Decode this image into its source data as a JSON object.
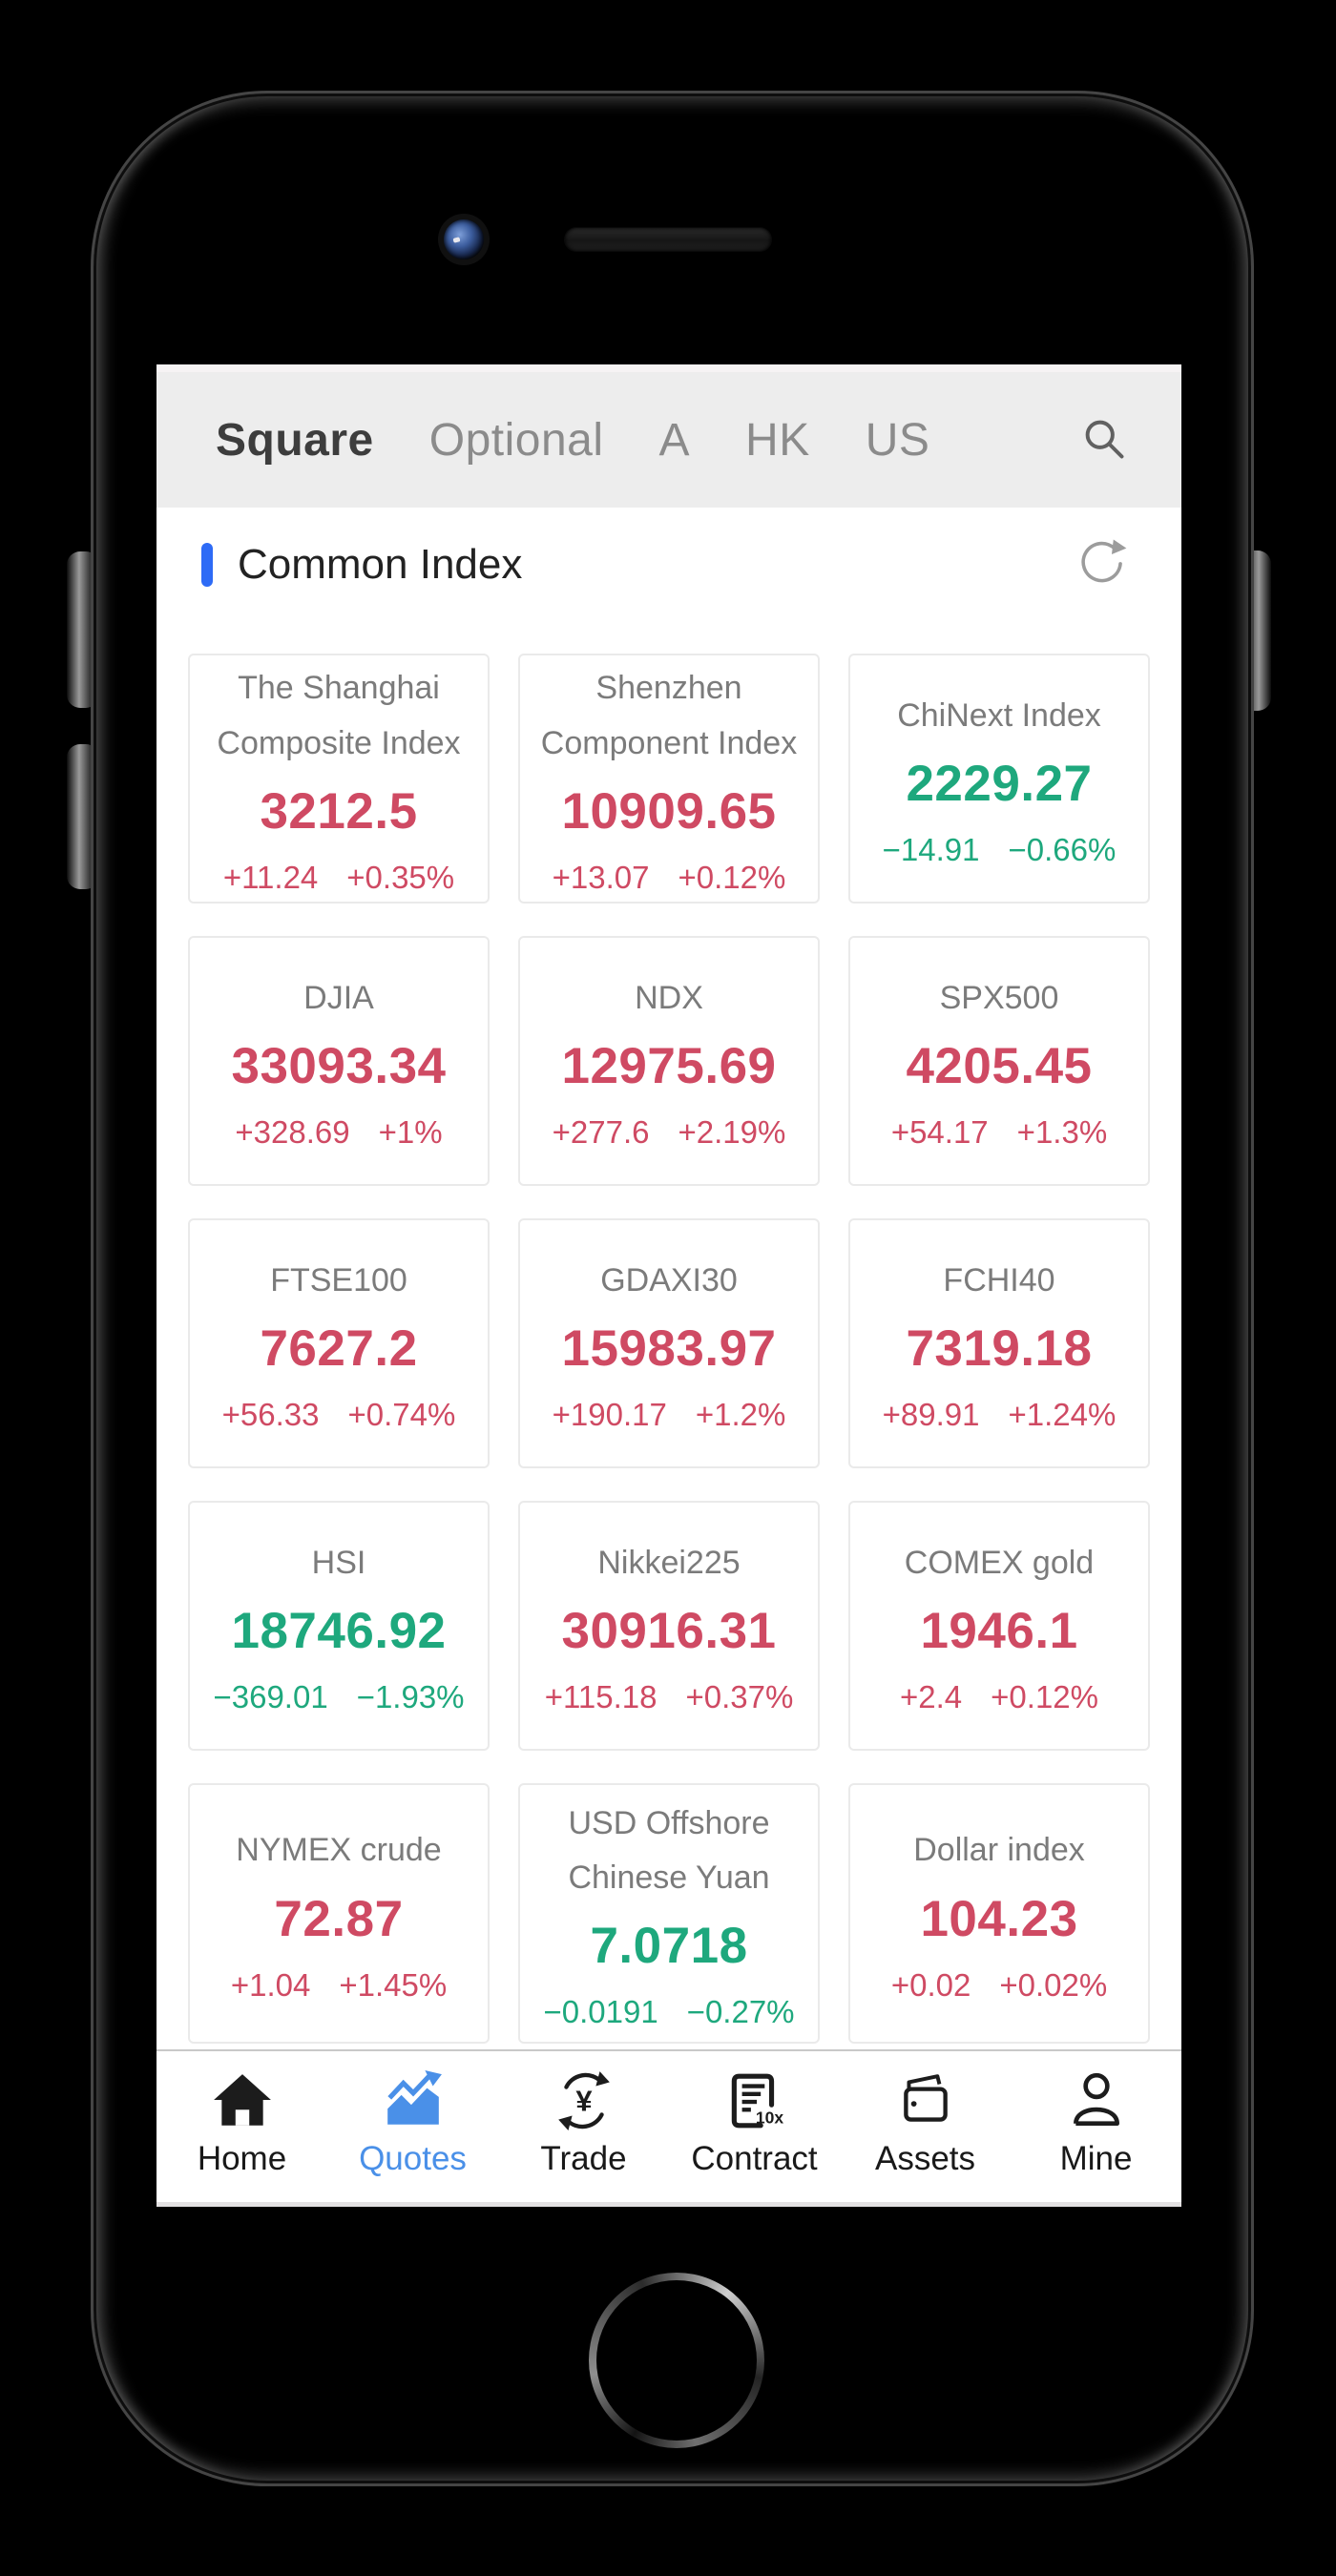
{
  "colors": {
    "up_red": "#cf4a63",
    "down_green": "#1ea87d",
    "section_accent_blue": "#2e6bf6",
    "active_tab_blue": "#4a90e8",
    "nav_bg": "#ededed"
  },
  "top_nav": {
    "tabs": [
      {
        "label": "Square",
        "active": true
      },
      {
        "label": "Optional",
        "active": false
      },
      {
        "label": "A",
        "active": false
      },
      {
        "label": "HK",
        "active": false
      },
      {
        "label": "US",
        "active": false
      }
    ],
    "search_icon": "magnifier-icon"
  },
  "section_header": {
    "title": "Common Index",
    "refresh_icon": "refresh-icon"
  },
  "indices": [
    {
      "name": "The Shanghai Composite Index",
      "price": "3212.5",
      "change": "+11.24",
      "change_pct": "+0.35%",
      "direction": "up"
    },
    {
      "name": "Shenzhen Component Index",
      "price": "10909.65",
      "change": "+13.07",
      "change_pct": "+0.12%",
      "direction": "up"
    },
    {
      "name": "ChiNext Index",
      "price": "2229.27",
      "change": "−14.91",
      "change_pct": "−0.66%",
      "direction": "down"
    },
    {
      "name": "DJIA",
      "price": "33093.34",
      "change": "+328.69",
      "change_pct": "+1%",
      "direction": "up"
    },
    {
      "name": "NDX",
      "price": "12975.69",
      "change": "+277.6",
      "change_pct": "+2.19%",
      "direction": "up"
    },
    {
      "name": "SPX500",
      "price": "4205.45",
      "change": "+54.17",
      "change_pct": "+1.3%",
      "direction": "up"
    },
    {
      "name": "FTSE100",
      "price": "7627.2",
      "change": "+56.33",
      "change_pct": "+0.74%",
      "direction": "up"
    },
    {
      "name": "GDAXI30",
      "price": "15983.97",
      "change": "+190.17",
      "change_pct": "+1.2%",
      "direction": "up"
    },
    {
      "name": "FCHI40",
      "price": "7319.18",
      "change": "+89.91",
      "change_pct": "+1.24%",
      "direction": "up"
    },
    {
      "name": "HSI",
      "price": "18746.92",
      "change": "−369.01",
      "change_pct": "−1.93%",
      "direction": "down"
    },
    {
      "name": "Nikkei225",
      "price": "30916.31",
      "change": "+115.18",
      "change_pct": "+0.37%",
      "direction": "up"
    },
    {
      "name": "COMEX gold",
      "price": "1946.1",
      "change": "+2.4",
      "change_pct": "+0.12%",
      "direction": "up"
    },
    {
      "name": "NYMEX crude",
      "price": "72.87",
      "change": "+1.04",
      "change_pct": "+1.45%",
      "direction": "up"
    },
    {
      "name": "USD Offshore Chinese Yuan",
      "price": "7.0718",
      "change": "−0.0191",
      "change_pct": "−0.27%",
      "direction": "down"
    },
    {
      "name": "Dollar index",
      "price": "104.23",
      "change": "+0.02",
      "change_pct": "+0.02%",
      "direction": "up"
    }
  ],
  "tab_bar": {
    "contract_badge": "10x",
    "items": [
      {
        "label": "Home",
        "icon": "home-icon",
        "active": false
      },
      {
        "label": "Quotes",
        "icon": "quotes-chart-icon",
        "active": true
      },
      {
        "label": "Trade",
        "icon": "trade-exchange-icon",
        "active": false
      },
      {
        "label": "Contract",
        "icon": "contract-10x-icon",
        "active": false
      },
      {
        "label": "Assets",
        "icon": "assets-wallet-icon",
        "active": false
      },
      {
        "label": "Mine",
        "icon": "mine-person-icon",
        "active": false
      }
    ]
  }
}
